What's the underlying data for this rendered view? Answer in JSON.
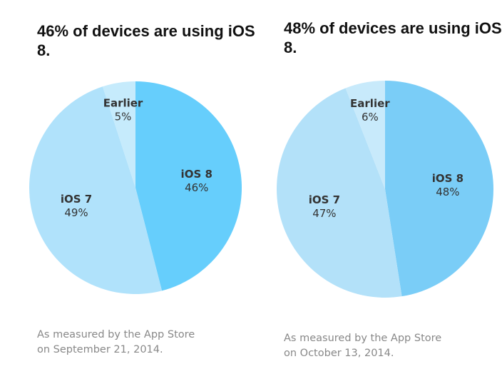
{
  "chart_data": [
    {
      "type": "pie",
      "title": "46% of devices are using iOS 8.",
      "footnote": [
        "As measured by the App Store",
        "on September 21, 2014."
      ],
      "slices": [
        {
          "label": "iOS 8",
          "value": 46,
          "value_label": "46%",
          "color": "#66cefc"
        },
        {
          "label": "iOS 7",
          "value": 49,
          "value_label": "49%",
          "color": "#b0e2fb"
        },
        {
          "label": "Earlier",
          "value": 5,
          "value_label": "5%",
          "color": "#c6ebfc"
        }
      ]
    },
    {
      "type": "pie",
      "title": "48% of devices are using iOS 8.",
      "footnote": [
        "As measured by the App Store",
        "on October 13, 2014."
      ],
      "slices": [
        {
          "label": "iOS 8",
          "value": 48,
          "value_label": "48%",
          "color": "#7acdf7"
        },
        {
          "label": "iOS 7",
          "value": 47,
          "value_label": "47%",
          "color": "#b3e1f9"
        },
        {
          "label": "Earlier",
          "value": 6,
          "value_label": "6%",
          "color": "#c8eafb"
        }
      ]
    }
  ]
}
